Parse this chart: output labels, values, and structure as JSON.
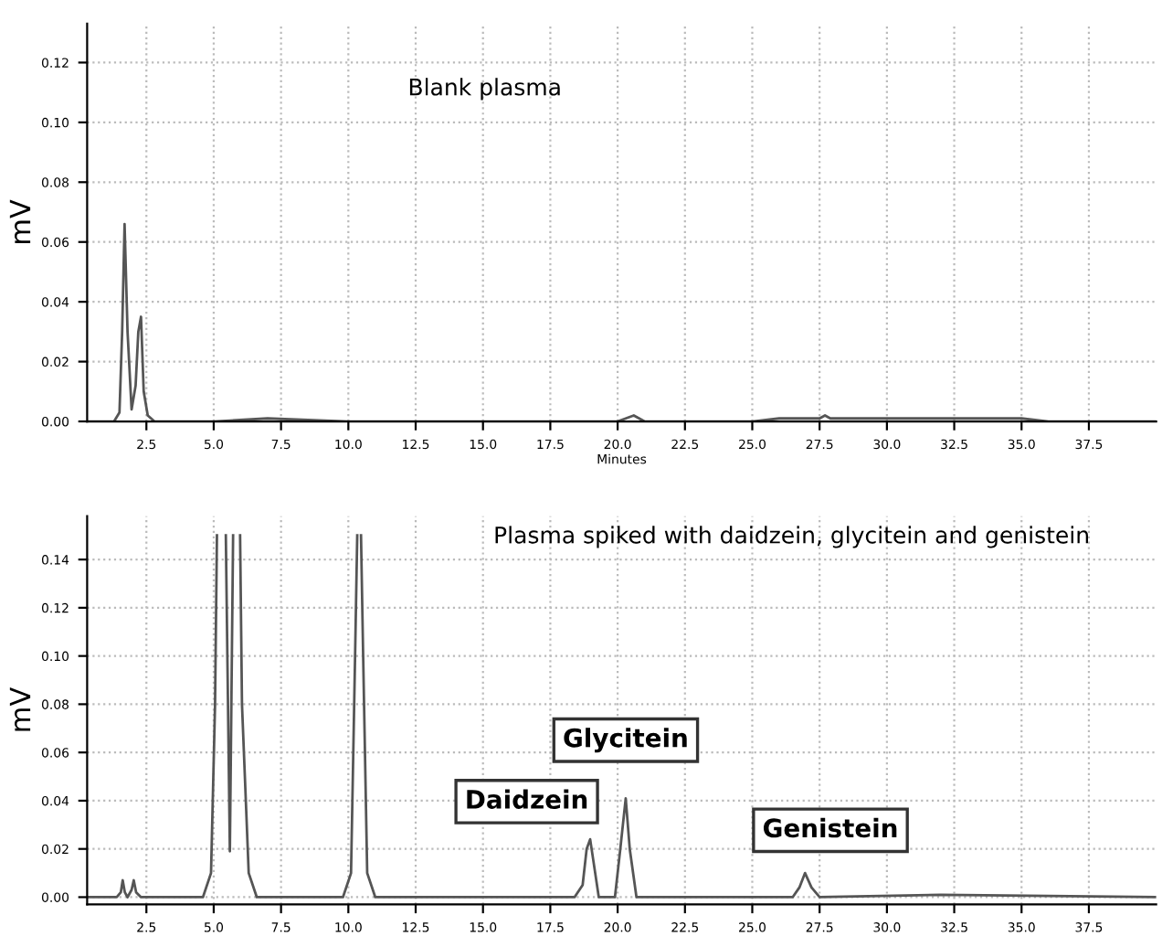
{
  "chart_data": [
    {
      "type": "line",
      "ylabel": "mV",
      "xlabel": "Minutes",
      "annotations": [
        "Blank plasma"
      ],
      "series": [
        {
          "color": "#555555",
          "x": [
            0.3,
            1.3,
            1.5,
            1.6,
            1.69,
            1.8,
            1.95,
            2.1,
            2.2,
            2.3,
            2.4,
            2.55,
            2.8,
            5,
            7,
            10,
            15,
            20,
            20.6,
            20.8,
            21,
            25,
            26,
            27.5,
            27.7,
            27.9,
            33,
            35,
            36,
            40
          ],
          "values": [
            0,
            0,
            0.003,
            0.03,
            0.066,
            0.03,
            0.004,
            0.012,
            0.03,
            0.035,
            0.01,
            0.002,
            0,
            0,
            0.001,
            0,
            0,
            0,
            0.002,
            0.001,
            0,
            0,
            0.001,
            0.001,
            0.002,
            0.001,
            0.001,
            0.001,
            0,
            0
          ]
        }
      ],
      "xlim": [
        0.3,
        40
      ],
      "ylim": [
        0,
        0.133
      ],
      "xticks": [
        {
          "value": 2.5,
          "label": "2.5"
        },
        {
          "value": 5,
          "label": "5.0"
        },
        {
          "value": 7.5,
          "label": "7.5"
        },
        {
          "value": 10,
          "label": "10.0"
        },
        {
          "value": 12.5,
          "label": "12.5"
        },
        {
          "value": 15,
          "label": "15.0"
        },
        {
          "value": 17.5,
          "label": "17.5"
        },
        {
          "value": 20,
          "label": "20.0"
        },
        {
          "value": 22.5,
          "label": "22.5"
        },
        {
          "value": 25,
          "label": "25.0"
        },
        {
          "value": 27.5,
          "label": "27.5"
        },
        {
          "value": 30,
          "label": "30.0"
        },
        {
          "value": 32.5,
          "label": "32.5"
        },
        {
          "value": 35,
          "label": "35.0"
        },
        {
          "value": 37.5,
          "label": "37.5"
        }
      ],
      "yticks": [
        {
          "value": 0,
          "label": "0.00"
        },
        {
          "value": 0.02,
          "label": "0.02"
        },
        {
          "value": 0.04,
          "label": "0.04"
        },
        {
          "value": 0.06,
          "label": "0.06"
        },
        {
          "value": 0.08,
          "label": "0.08"
        },
        {
          "value": 0.1,
          "label": "0.10"
        },
        {
          "value": 0.12,
          "label": "0.12"
        }
      ],
      "grid": true,
      "marker": "none",
      "line_style": "solid"
    },
    {
      "type": "line",
      "ylabel": "mV",
      "annotations": [
        "Plasma spiked with daidzein, glycitein and genistein",
        {
          "text": "Daidzein",
          "x": 18.98,
          "y": 0.024
        },
        {
          "text": "Glycitein",
          "x": 20.3,
          "y": 0.041
        },
        {
          "text": "Genistein",
          "x": 26.96,
          "y": 0.01
        }
      ],
      "series": [
        {
          "color": "#555555",
          "x": [
            0.3,
            1.4,
            1.55,
            1.62,
            1.7,
            1.8,
            1.95,
            2.03,
            2.12,
            2.3,
            4.6,
            4.9,
            5.05,
            5.12,
            5.2,
            5.45,
            5.6,
            5.72,
            5.88,
            5.98,
            6.05,
            6.3,
            6.6,
            9.8,
            10.1,
            10.25,
            10.33,
            10.4,
            10.47,
            10.55,
            10.7,
            11,
            18.4,
            18.7,
            18.85,
            18.98,
            19.1,
            19.3,
            19.9,
            20.1,
            20.3,
            20.45,
            20.7,
            26.5,
            26.75,
            26.96,
            27.2,
            27.5,
            32,
            40
          ],
          "values": [
            0,
            0,
            0.002,
            0.007,
            0.002,
            0,
            0.003,
            0.007,
            0.002,
            0,
            0,
            0.01,
            0.08,
            0.15,
            null,
            0.15,
            0.019,
            0.15,
            null,
            0.15,
            0.08,
            0.01,
            0,
            0,
            0.01,
            0.1,
            0.15,
            null,
            0.15,
            0.1,
            0.01,
            0,
            0,
            0.005,
            0.02,
            0.024,
            0.015,
            0,
            0,
            0.02,
            0.041,
            0.02,
            0,
            0,
            0.004,
            0.01,
            0.004,
            0,
            0.001,
            0
          ]
        }
      ],
      "xlim": [
        0.3,
        40
      ],
      "ylim": [
        -0.003,
        0.158
      ],
      "xticks": [
        {
          "value": 2.5,
          "label": "2.5"
        },
        {
          "value": 5,
          "label": "5.0"
        },
        {
          "value": 7.5,
          "label": "7.5"
        },
        {
          "value": 10,
          "label": "10.0"
        },
        {
          "value": 12.5,
          "label": "12.5"
        },
        {
          "value": 15,
          "label": "15.0"
        },
        {
          "value": 17.5,
          "label": "17.5"
        },
        {
          "value": 20,
          "label": "20.0"
        },
        {
          "value": 22.5,
          "label": "22.5"
        },
        {
          "value": 25,
          "label": "25.0"
        },
        {
          "value": 27.5,
          "label": "27.5"
        },
        {
          "value": 30,
          "label": "30.0"
        },
        {
          "value": 32.5,
          "label": "32.5"
        },
        {
          "value": 35,
          "label": "35.0"
        },
        {
          "value": 37.5,
          "label": "37.5"
        }
      ],
      "yticks": [
        {
          "value": 0,
          "label": "0.00"
        },
        {
          "value": 0.02,
          "label": "0.02"
        },
        {
          "value": 0.04,
          "label": "0.04"
        },
        {
          "value": 0.06,
          "label": "0.06"
        },
        {
          "value": 0.08,
          "label": "0.08"
        },
        {
          "value": 0.1,
          "label": "0.10"
        },
        {
          "value": 0.12,
          "label": "0.12"
        },
        {
          "value": 0.14,
          "label": "0.14"
        }
      ],
      "grid": true,
      "marker": "none",
      "line_style": "solid"
    }
  ]
}
